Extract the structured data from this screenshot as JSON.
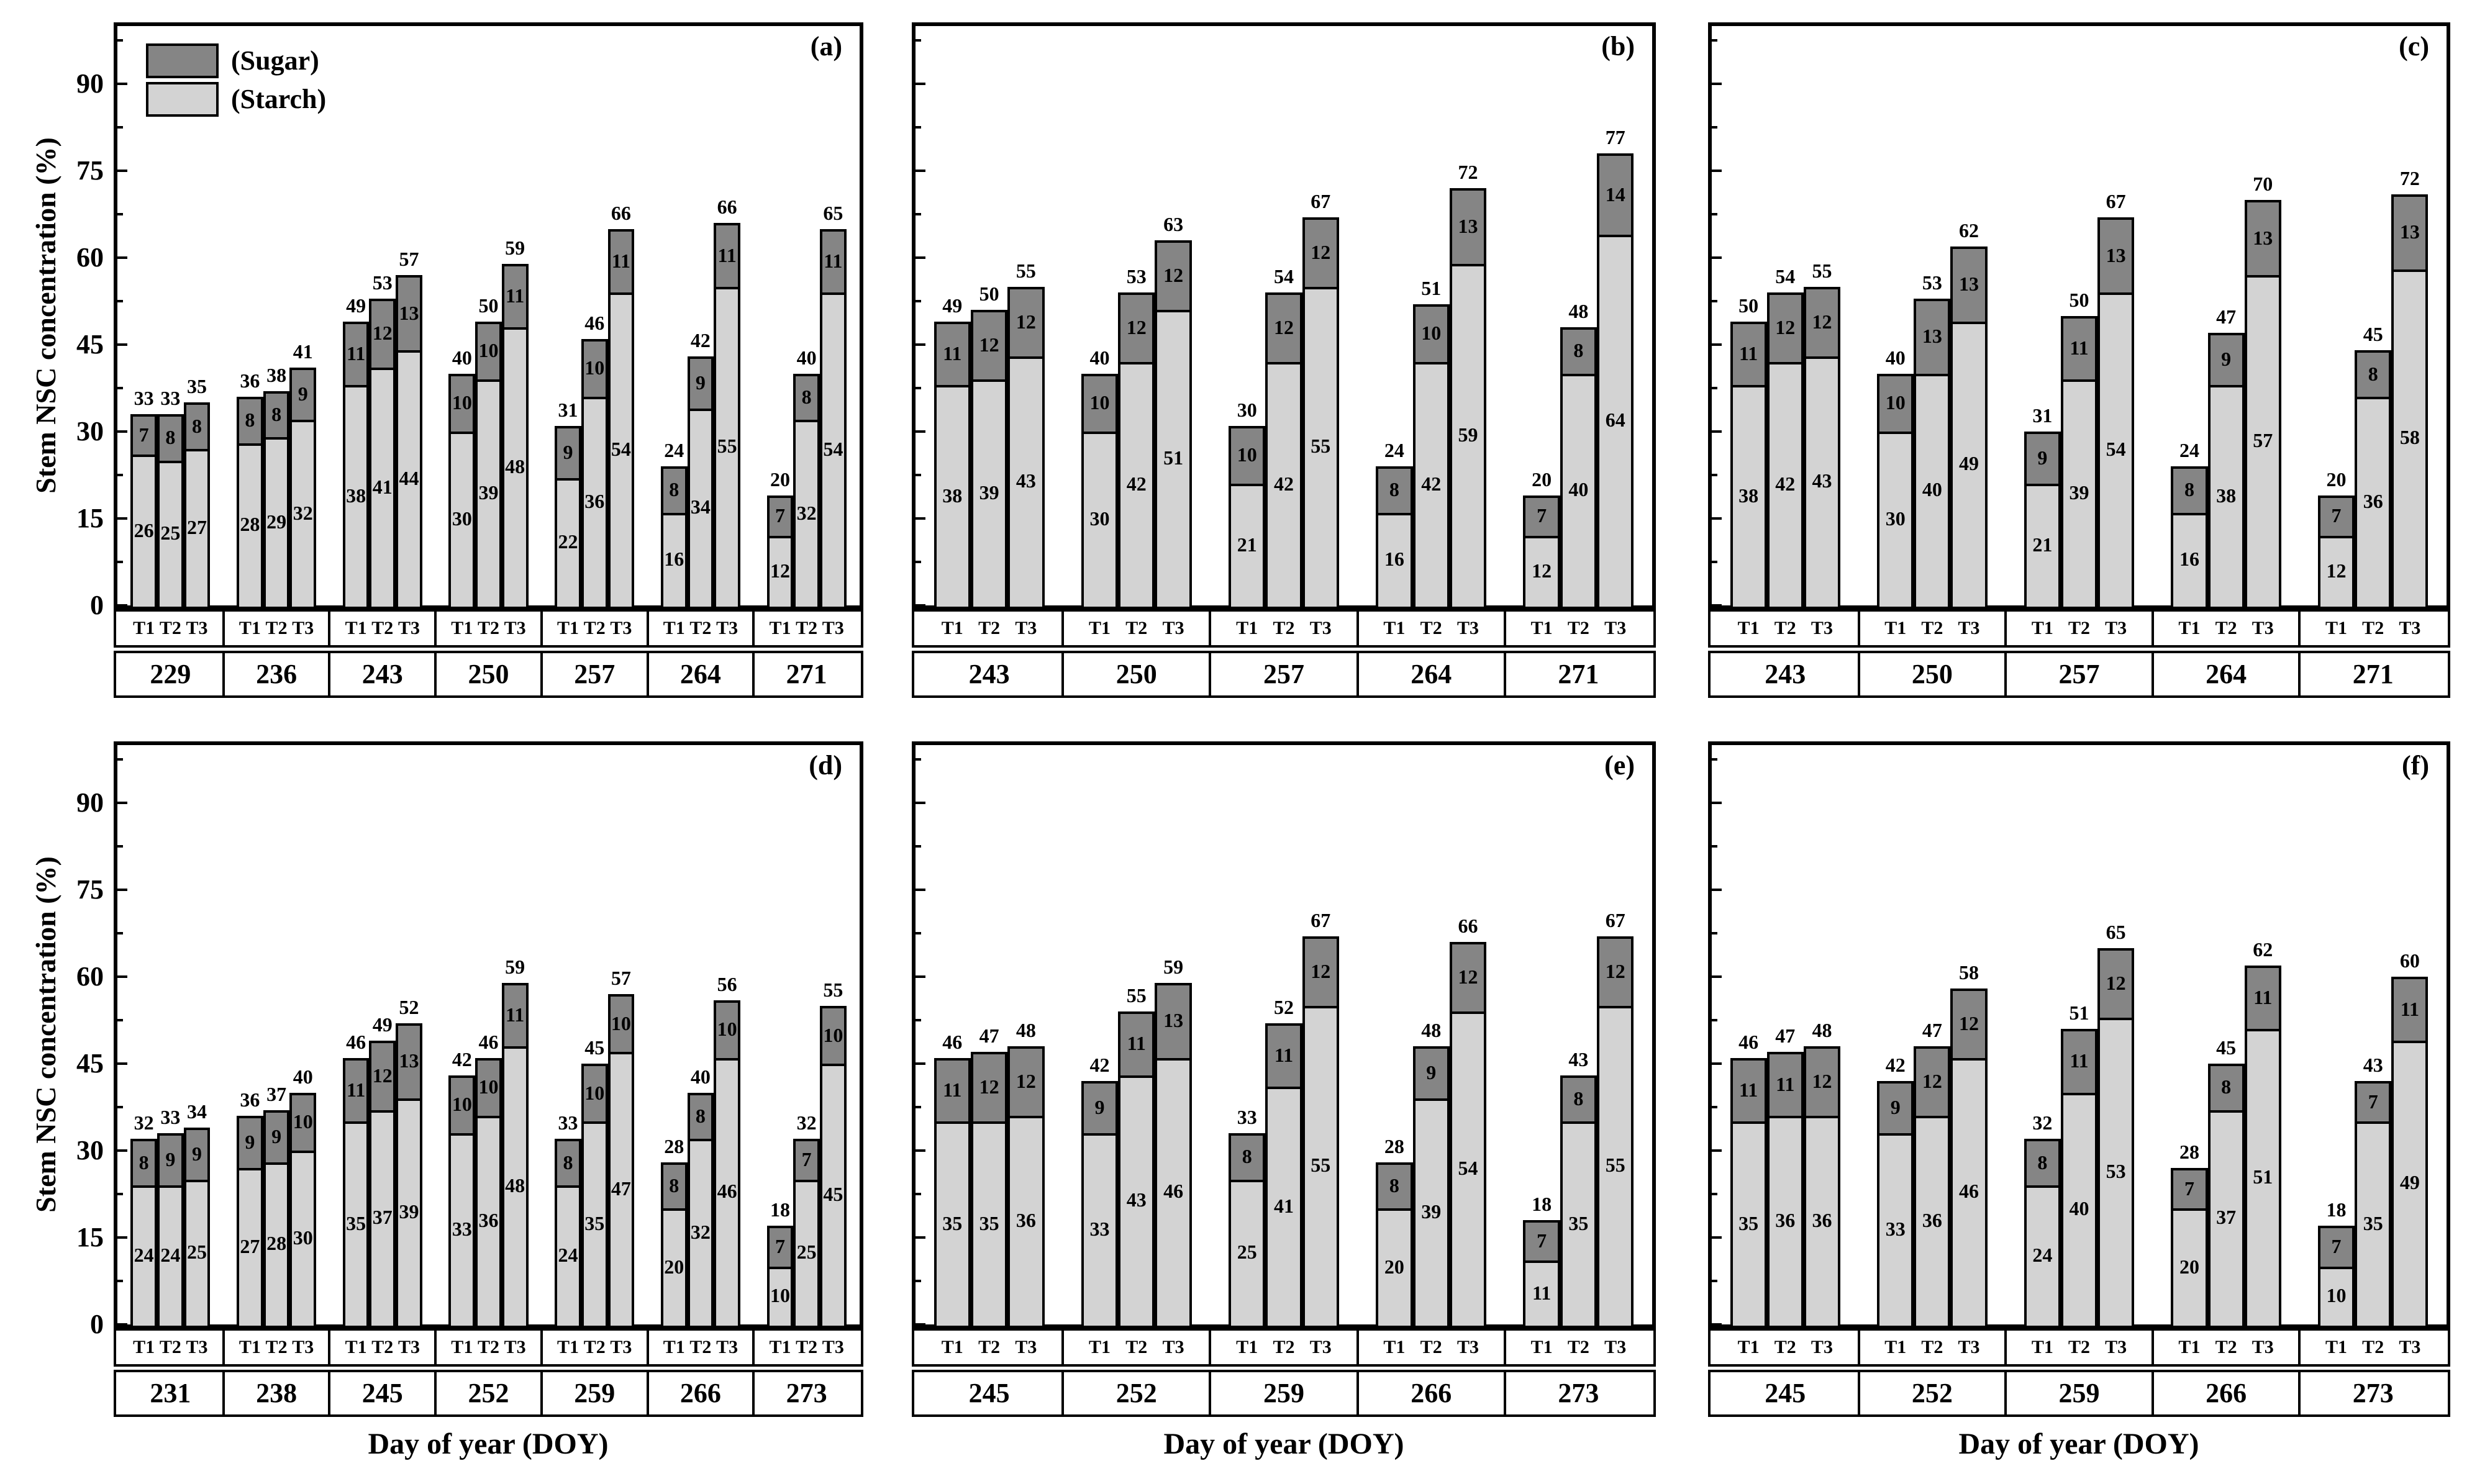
{
  "y_axis": {
    "title": "Stem NSC concentration (%)",
    "major_ticks": [
      0,
      15,
      30,
      45,
      60,
      75,
      90
    ],
    "minor_ticks": [
      7.5,
      22.5,
      37.5,
      52.5,
      67.5,
      82.5,
      97.5
    ],
    "max": 100
  },
  "x_axis": {
    "title": "Day of year (DOY)"
  },
  "treatments": [
    "T1",
    "T2",
    "T3"
  ],
  "legend": [
    {
      "label": "(Sugar)",
      "color": "#858585"
    },
    {
      "label": "(Starch)",
      "color": "#d3d3d3"
    }
  ],
  "colors": {
    "sugar": "#858585",
    "starch": "#d3d3d3",
    "border": "#000000",
    "background": "#ffffff"
  },
  "chart_data": [
    {
      "type": "bar",
      "stacked": true,
      "label": "(a)",
      "series_order": [
        "Starch",
        "Sugar"
      ],
      "categories": [
        229,
        236,
        243,
        250,
        257,
        264,
        271
      ],
      "groups": [
        {
          "doy": 229,
          "sugar": [
            7,
            8,
            8
          ],
          "starch": [
            26,
            25,
            27
          ],
          "total": [
            33,
            33,
            35
          ]
        },
        {
          "doy": 236,
          "sugar": [
            8,
            8,
            9
          ],
          "starch": [
            28,
            29,
            32
          ],
          "total": [
            36,
            38,
            41
          ]
        },
        {
          "doy": 243,
          "sugar": [
            11,
            12,
            13
          ],
          "starch": [
            38,
            41,
            44
          ],
          "total": [
            49,
            53,
            57
          ]
        },
        {
          "doy": 250,
          "sugar": [
            10,
            10,
            11
          ],
          "starch": [
            30,
            39,
            48
          ],
          "total": [
            40,
            50,
            59
          ]
        },
        {
          "doy": 257,
          "sugar": [
            9,
            10,
            11
          ],
          "starch": [
            22,
            36,
            54
          ],
          "total": [
            31,
            46,
            66
          ]
        },
        {
          "doy": 264,
          "sugar": [
            8,
            9,
            11
          ],
          "starch": [
            16,
            34,
            55
          ],
          "total": [
            24,
            42,
            66
          ]
        },
        {
          "doy": 271,
          "sugar": [
            7,
            8,
            11
          ],
          "starch": [
            12,
            32,
            54
          ],
          "total": [
            20,
            40,
            65
          ]
        }
      ]
    },
    {
      "type": "bar",
      "stacked": true,
      "label": "(b)",
      "series_order": [
        "Starch",
        "Sugar"
      ],
      "categories": [
        243,
        250,
        257,
        264,
        271
      ],
      "groups": [
        {
          "doy": 243,
          "sugar": [
            11,
            12,
            12
          ],
          "starch": [
            38,
            39,
            43
          ],
          "total": [
            49,
            50,
            55
          ]
        },
        {
          "doy": 250,
          "sugar": [
            10,
            12,
            12
          ],
          "starch": [
            30,
            42,
            51
          ],
          "total": [
            40,
            53,
            63
          ]
        },
        {
          "doy": 257,
          "sugar": [
            10,
            12,
            12
          ],
          "starch": [
            21,
            42,
            55
          ],
          "total": [
            30,
            54,
            67
          ]
        },
        {
          "doy": 264,
          "sugar": [
            8,
            10,
            13
          ],
          "starch": [
            16,
            42,
            59
          ],
          "total": [
            24,
            51,
            72
          ]
        },
        {
          "doy": 271,
          "sugar": [
            7,
            8,
            14
          ],
          "starch": [
            12,
            40,
            64
          ],
          "total": [
            20,
            48,
            77
          ]
        }
      ]
    },
    {
      "type": "bar",
      "stacked": true,
      "label": "(c)",
      "series_order": [
        "Starch",
        "Sugar"
      ],
      "categories": [
        243,
        250,
        257,
        264,
        271
      ],
      "groups": [
        {
          "doy": 243,
          "sugar": [
            11,
            12,
            12
          ],
          "starch": [
            38,
            42,
            43
          ],
          "total": [
            50,
            54,
            55
          ]
        },
        {
          "doy": 250,
          "sugar": [
            10,
            13,
            13
          ],
          "starch": [
            30,
            40,
            49
          ],
          "total": [
            40,
            53,
            62
          ]
        },
        {
          "doy": 257,
          "sugar": [
            9,
            11,
            13
          ],
          "starch": [
            21,
            39,
            54
          ],
          "total": [
            31,
            50,
            67
          ]
        },
        {
          "doy": 264,
          "sugar": [
            8,
            9,
            13
          ],
          "starch": [
            16,
            38,
            57
          ],
          "total": [
            24,
            47,
            70
          ]
        },
        {
          "doy": 271,
          "sugar": [
            7,
            8,
            13
          ],
          "starch": [
            12,
            36,
            58
          ],
          "total": [
            20,
            45,
            72
          ]
        }
      ]
    },
    {
      "type": "bar",
      "stacked": true,
      "label": "(d)",
      "series_order": [
        "Starch",
        "Sugar"
      ],
      "categories": [
        231,
        238,
        245,
        252,
        259,
        266,
        273
      ],
      "groups": [
        {
          "doy": 231,
          "sugar": [
            8,
            9,
            9
          ],
          "starch": [
            24,
            24,
            25
          ],
          "total": [
            32,
            33,
            34
          ]
        },
        {
          "doy": 238,
          "sugar": [
            9,
            9,
            10
          ],
          "starch": [
            27,
            28,
            30
          ],
          "total": [
            36,
            37,
            40
          ]
        },
        {
          "doy": 245,
          "sugar": [
            11,
            12,
            13
          ],
          "starch": [
            35,
            37,
            39
          ],
          "total": [
            46,
            49,
            52
          ]
        },
        {
          "doy": 252,
          "sugar": [
            10,
            10,
            11
          ],
          "starch": [
            33,
            36,
            48
          ],
          "total": [
            42,
            46,
            59
          ]
        },
        {
          "doy": 259,
          "sugar": [
            8,
            10,
            10
          ],
          "starch": [
            24,
            35,
            47
          ],
          "total": [
            33,
            45,
            57
          ]
        },
        {
          "doy": 266,
          "sugar": [
            8,
            8,
            10
          ],
          "starch": [
            20,
            32,
            46
          ],
          "total": [
            28,
            40,
            56
          ]
        },
        {
          "doy": 273,
          "sugar": [
            7,
            7,
            10
          ],
          "starch": [
            10,
            25,
            45
          ],
          "total": [
            18,
            32,
            55
          ]
        }
      ]
    },
    {
      "type": "bar",
      "stacked": true,
      "label": "(e)",
      "series_order": [
        "Starch",
        "Sugar"
      ],
      "categories": [
        245,
        252,
        259,
        266,
        273
      ],
      "groups": [
        {
          "doy": 245,
          "sugar": [
            11,
            12,
            12
          ],
          "starch": [
            35,
            35,
            36
          ],
          "total": [
            46,
            47,
            48
          ]
        },
        {
          "doy": 252,
          "sugar": [
            9,
            11,
            13
          ],
          "starch": [
            33,
            43,
            46
          ],
          "total": [
            42,
            55,
            59
          ]
        },
        {
          "doy": 259,
          "sugar": [
            8,
            11,
            12
          ],
          "starch": [
            25,
            41,
            55
          ],
          "total": [
            33,
            52,
            67
          ]
        },
        {
          "doy": 266,
          "sugar": [
            8,
            9,
            12
          ],
          "starch": [
            20,
            39,
            54
          ],
          "total": [
            28,
            48,
            66
          ]
        },
        {
          "doy": 273,
          "sugar": [
            7,
            8,
            12
          ],
          "starch": [
            11,
            35,
            55
          ],
          "total": [
            18,
            43,
            67
          ]
        }
      ]
    },
    {
      "type": "bar",
      "stacked": true,
      "label": "(f)",
      "series_order": [
        "Starch",
        "Sugar"
      ],
      "categories": [
        245,
        252,
        259,
        266,
        273
      ],
      "groups": [
        {
          "doy": 245,
          "sugar": [
            11,
            11,
            12
          ],
          "starch": [
            35,
            36,
            36
          ],
          "total": [
            46,
            47,
            48
          ]
        },
        {
          "doy": 252,
          "sugar": [
            9,
            12,
            12
          ],
          "starch": [
            33,
            36,
            46
          ],
          "total": [
            42,
            47,
            58
          ]
        },
        {
          "doy": 259,
          "sugar": [
            8,
            11,
            12
          ],
          "starch": [
            24,
            40,
            53
          ],
          "total": [
            32,
            51,
            65
          ]
        },
        {
          "doy": 266,
          "sugar": [
            7,
            8,
            11
          ],
          "starch": [
            20,
            37,
            51
          ],
          "total": [
            28,
            45,
            62
          ]
        },
        {
          "doy": 273,
          "sugar": [
            7,
            7,
            11
          ],
          "starch": [
            10,
            35,
            49
          ],
          "total": [
            18,
            43,
            60
          ]
        }
      ]
    }
  ]
}
